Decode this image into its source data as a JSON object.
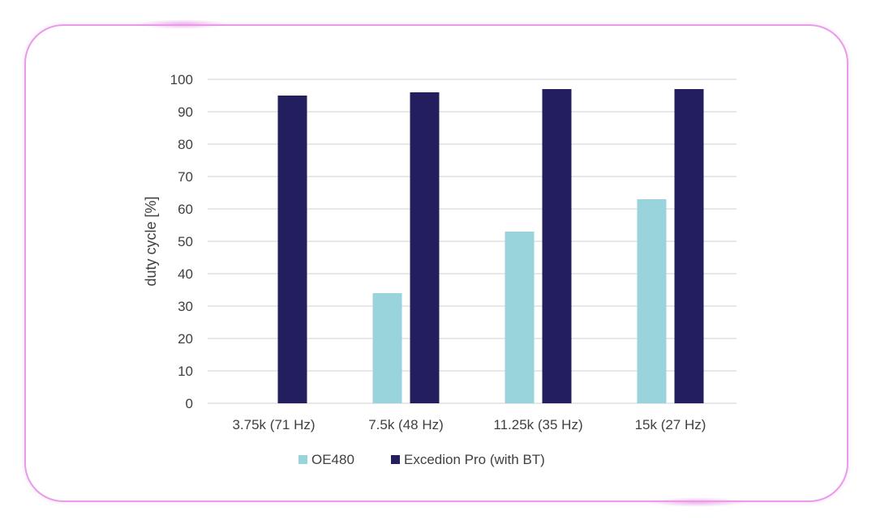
{
  "chart_data": {
    "type": "bar",
    "categories": [
      "3.75k (71 Hz)",
      "7.5k (48 Hz)",
      "11.25k (35 Hz)",
      "15k (27 Hz)"
    ],
    "series": [
      {
        "name": "OE480",
        "values": [
          0,
          34,
          53,
          63
        ],
        "color": "#99d3dc"
      },
      {
        "name": "Excedion Pro (with BT)",
        "values": [
          95,
          96,
          97,
          97
        ],
        "color": "#231f5f"
      }
    ],
    "xlabel": "",
    "ylabel": "duty cycle [%]",
    "ylim": [
      0,
      100
    ],
    "yticks": [
      0,
      10,
      20,
      30,
      40,
      50,
      60,
      70,
      80,
      90,
      100
    ],
    "grid": true,
    "legend_position": "bottom",
    "colors": {
      "frame_border": "#e79be9",
      "gridline": "#d9d9d9",
      "text": "#404040"
    }
  }
}
